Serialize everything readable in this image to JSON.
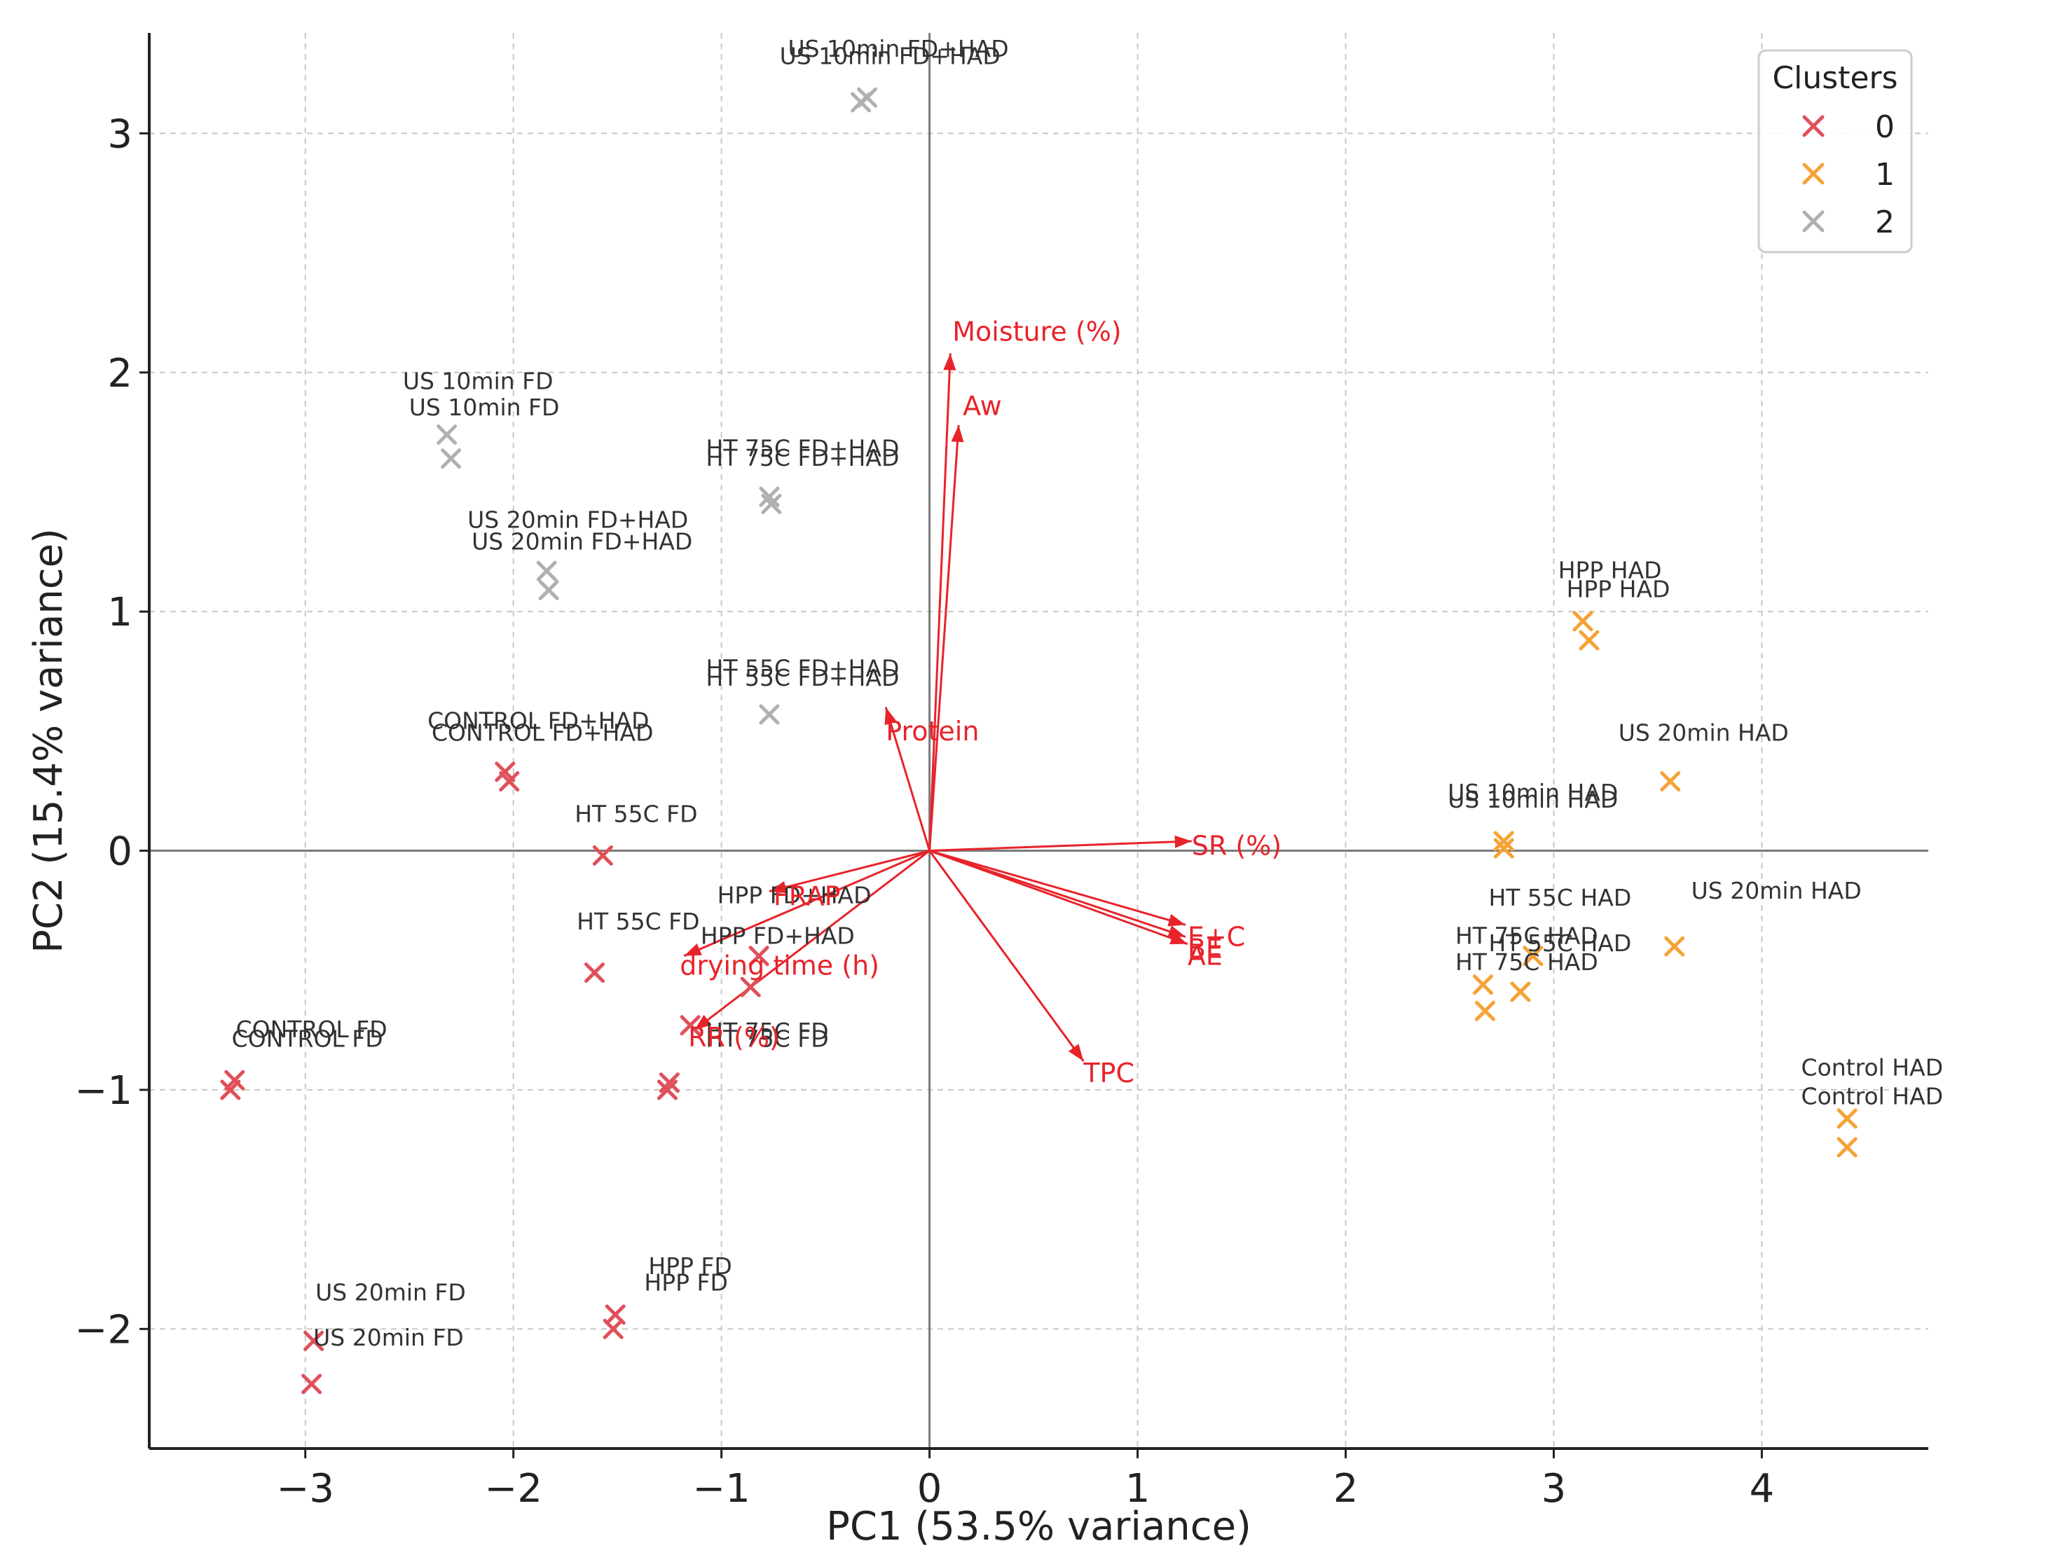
{
  "chart_data": {
    "type": "scatter",
    "xlabel": "PC1 (53.5% variance)",
    "ylabel": "PC2 (15.4% variance)",
    "xlim": [
      -3.75,
      4.8
    ],
    "ylim": [
      -2.5,
      3.42
    ],
    "xticks": [
      -3,
      -2,
      -1,
      0,
      1,
      2,
      3,
      4
    ],
    "yticks": [
      -2,
      -1,
      0,
      1,
      2,
      3
    ],
    "xtick_labels": [
      "−3",
      "−2",
      "−1",
      "0",
      "1",
      "2",
      "3",
      "4"
    ],
    "ytick_labels": [
      "−2",
      "−1",
      "0",
      "1",
      "2",
      "3"
    ],
    "grid": true,
    "zero_lines": true,
    "legend": {
      "title": "Clusters",
      "placement": "top-right",
      "entries": [
        {
          "label": "0",
          "color": "#e0505a"
        },
        {
          "label": "1",
          "color": "#f5a236"
        },
        {
          "label": "2",
          "color": "#b0b0b0"
        }
      ]
    },
    "marker": "x",
    "points": [
      {
        "x": -0.3,
        "y": 3.15,
        "cluster": 2
      },
      {
        "x": -0.33,
        "y": 3.13,
        "cluster": 2
      },
      {
        "x": -2.32,
        "y": 1.74,
        "cluster": 2
      },
      {
        "x": -2.3,
        "y": 1.64,
        "cluster": 2
      },
      {
        "x": -0.77,
        "y": 1.48,
        "cluster": 2
      },
      {
        "x": -0.76,
        "y": 1.45,
        "cluster": 2
      },
      {
        "x": -1.84,
        "y": 1.17,
        "cluster": 2
      },
      {
        "x": -1.83,
        "y": 1.09,
        "cluster": 2
      },
      {
        "x": -0.77,
        "y": 0.57,
        "cluster": 2
      },
      {
        "x": -2.04,
        "y": 0.33,
        "cluster": 0
      },
      {
        "x": -2.02,
        "y": 0.29,
        "cluster": 0
      },
      {
        "x": -1.57,
        "y": -0.02,
        "cluster": 0
      },
      {
        "x": -1.61,
        "y": -0.51,
        "cluster": 0
      },
      {
        "x": -0.86,
        "y": -0.57,
        "cluster": 0
      },
      {
        "x": -0.82,
        "y": -0.44,
        "cluster": 0
      },
      {
        "x": -3.34,
        "y": -0.96,
        "cluster": 0
      },
      {
        "x": -3.36,
        "y": -1.0,
        "cluster": 0
      },
      {
        "x": -1.25,
        "y": -0.97,
        "cluster": 0
      },
      {
        "x": -1.26,
        "y": -1.0,
        "cluster": 0
      },
      {
        "x": -1.51,
        "y": -1.94,
        "cluster": 0
      },
      {
        "x": -1.52,
        "y": -2.0,
        "cluster": 0
      },
      {
        "x": -2.96,
        "y": -2.05,
        "cluster": 0
      },
      {
        "x": -2.97,
        "y": -2.23,
        "cluster": 0
      },
      {
        "x": -1.15,
        "y": -0.73,
        "cluster": 0
      },
      {
        "x": 3.14,
        "y": 0.96,
        "cluster": 1
      },
      {
        "x": 3.17,
        "y": 0.88,
        "cluster": 1
      },
      {
        "x": 3.56,
        "y": 0.29,
        "cluster": 1
      },
      {
        "x": 2.76,
        "y": 0.04,
        "cluster": 1
      },
      {
        "x": 2.76,
        "y": 0.01,
        "cluster": 1
      },
      {
        "x": 2.66,
        "y": -0.56,
        "cluster": 1
      },
      {
        "x": 2.67,
        "y": -0.67,
        "cluster": 1
      },
      {
        "x": 2.84,
        "y": -0.59,
        "cluster": 1
      },
      {
        "x": 2.9,
        "y": -0.44,
        "cluster": 1
      },
      {
        "x": 3.58,
        "y": -0.4,
        "cluster": 1
      },
      {
        "x": 4.41,
        "y": -1.12,
        "cluster": 1
      },
      {
        "x": 4.41,
        "y": -1.24,
        "cluster": 1
      }
    ],
    "point_labels": [
      {
        "text": "US 10min FD+HAD",
        "x": -0.15,
        "y": 3.32
      },
      {
        "text": "US 10min FD+HAD",
        "x": -0.19,
        "y": 3.29
      },
      {
        "text": "US 10min FD",
        "x": -2.17,
        "y": 1.93
      },
      {
        "text": "US 10min FD",
        "x": -2.14,
        "y": 1.82
      },
      {
        "text": "HT 75C FD+HAD",
        "x": -0.61,
        "y": 1.65
      },
      {
        "text": "HT 75C FD+HAD",
        "x": -0.61,
        "y": 1.61
      },
      {
        "text": "US 20min FD+HAD",
        "x": -1.69,
        "y": 1.35
      },
      {
        "text": "US 20min FD+HAD",
        "x": -1.67,
        "y": 1.26
      },
      {
        "text": "HPP HAD",
        "x": 3.27,
        "y": 1.14
      },
      {
        "text": "HPP HAD",
        "x": 3.31,
        "y": 1.06
      },
      {
        "text": "HT 55C FD+HAD",
        "x": -0.61,
        "y": 0.73
      },
      {
        "text": "HT 55C FD+HAD",
        "x": -0.61,
        "y": 0.69
      },
      {
        "text": "CONTROL FD+HAD",
        "x": -1.88,
        "y": 0.51
      },
      {
        "text": "CONTROL FD+HAD",
        "x": -1.86,
        "y": 0.46
      },
      {
        "text": "US 20min HAD",
        "x": 3.72,
        "y": 0.46
      },
      {
        "text": "US 10min HAD",
        "x": 2.9,
        "y": 0.21
      },
      {
        "text": "US 10min HAD",
        "x": 2.9,
        "y": 0.18
      },
      {
        "text": "HT 55C FD",
        "x": -1.41,
        "y": 0.12
      },
      {
        "text": "HPP FD+HAD",
        "x": -0.65,
        "y": -0.22
      },
      {
        "text": "HT 55C HAD",
        "x": 3.03,
        "y": -0.23
      },
      {
        "text": "US 20min HAD",
        "x": 4.07,
        "y": -0.2
      },
      {
        "text": "HT 55C FD",
        "x": -1.4,
        "y": -0.33
      },
      {
        "text": "HT 75C HAD",
        "x": 2.87,
        "y": -0.39
      },
      {
        "text": "HT 55C HAD",
        "x": 3.03,
        "y": -0.42
      },
      {
        "text": "HT 75C HAD",
        "x": 2.87,
        "y": -0.5
      },
      {
        "text": "HPP FD+HAD",
        "x": -0.73,
        "y": -0.39
      },
      {
        "text": "CONTROL FD",
        "x": -2.97,
        "y": -0.78
      },
      {
        "text": "CONTROL FD",
        "x": -2.99,
        "y": -0.82
      },
      {
        "text": "HT 75C FD",
        "x": -0.78,
        "y": -0.79
      },
      {
        "text": "HT 75C FD",
        "x": -0.78,
        "y": -0.82
      },
      {
        "text": "Control HAD",
        "x": 4.53,
        "y": -0.94
      },
      {
        "text": "Control HAD",
        "x": 4.53,
        "y": -1.06
      },
      {
        "text": "HPP FD",
        "x": -1.15,
        "y": -1.77
      },
      {
        "text": "HPP FD",
        "x": -1.17,
        "y": -1.84
      },
      {
        "text": "US 20min FD",
        "x": -2.59,
        "y": -1.88
      },
      {
        "text": "US 20min FD",
        "x": -2.6,
        "y": -2.07
      }
    ],
    "loadings": [
      {
        "label": "Moisture (%)",
        "x": 0.1,
        "y": 2.08,
        "label_x": 0.11,
        "label_y": 2.17
      },
      {
        "label": "Aw",
        "x": 0.14,
        "y": 1.78,
        "label_x": 0.16,
        "label_y": 1.86
      },
      {
        "label": "Protein",
        "x": -0.21,
        "y": 0.6,
        "label_x": -0.21,
        "label_y": 0.5
      },
      {
        "label": "SR (%)",
        "x": 1.26,
        "y": 0.04,
        "label_x": 1.26,
        "label_y": 0.02
      },
      {
        "label": "FRAP",
        "x": -0.77,
        "y": -0.17,
        "label_x": -0.75,
        "label_y": -0.19
      },
      {
        "label": "E+C",
        "x": 1.23,
        "y": -0.31,
        "label_x": 1.24,
        "label_y": -0.36
      },
      {
        "label": "BE",
        "x": 1.23,
        "y": -0.36,
        "label_x": 1.24,
        "label_y": -0.41
      },
      {
        "label": "AE",
        "x": 1.24,
        "y": -0.39,
        "label_x": 1.24,
        "label_y": -0.44
      },
      {
        "label": "drying time (h)",
        "x": -1.18,
        "y": -0.44,
        "label_x": -1.2,
        "label_y": -0.48
      },
      {
        "label": "RR (%)",
        "x": -1.13,
        "y": -0.75,
        "label_x": -1.16,
        "label_y": -0.78
      },
      {
        "label": "TPC",
        "x": 0.74,
        "y": -0.88,
        "label_x": 0.74,
        "label_y": -0.93
      }
    ],
    "loading_color": "#e8232a"
  }
}
